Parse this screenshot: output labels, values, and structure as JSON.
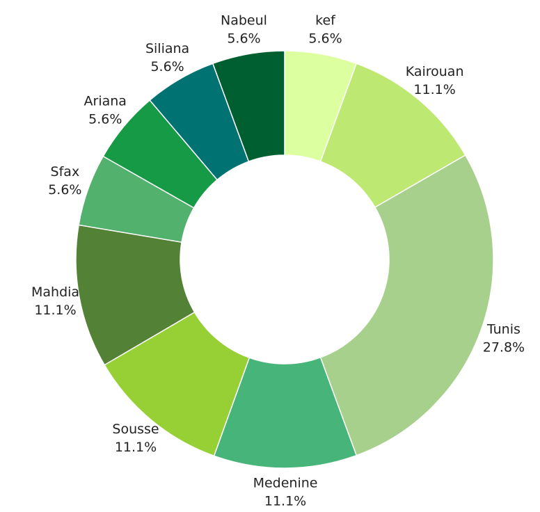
{
  "chart_data": {
    "type": "donut",
    "categories": [
      "kef",
      "Kairouan",
      "Tunis",
      "Medenine",
      "Sousse",
      "Mahdia",
      "Sfax",
      "Ariana",
      "Siliana",
      "Nabeul"
    ],
    "values": [
      5.6,
      11.1,
      27.8,
      11.1,
      11.1,
      11.1,
      5.6,
      5.6,
      5.6,
      5.6
    ],
    "value_labels": [
      "5.6%",
      "11.1%",
      "27.8%",
      "11.1%",
      "11.1%",
      "11.1%",
      "5.6%",
      "5.6%",
      "5.6%",
      "5.6%"
    ],
    "colors": [
      "#dcffa0",
      "#bde872",
      "#a8d08d",
      "#47b579",
      "#97d035",
      "#538135",
      "#52b16c",
      "#169a45",
      "#007272",
      "#005f30"
    ]
  }
}
